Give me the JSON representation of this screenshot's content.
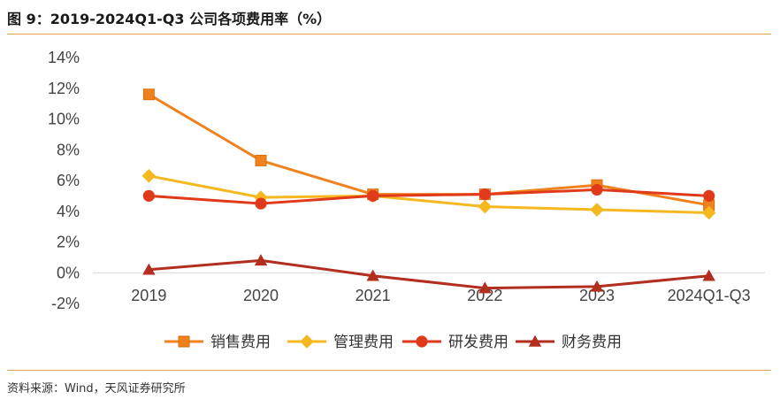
{
  "header": {
    "title": "图 9：2019-2024Q1-Q3 公司各项费用率（%）"
  },
  "footer": {
    "source": "资料来源：Wind，天风证券研究所"
  },
  "chart_data": {
    "type": "line",
    "title": "图 9：2019-2024Q1-Q3 公司各项费用率（%）",
    "categories": [
      "2019",
      "2020",
      "2021",
      "2022",
      "2023",
      "2024Q1-Q3"
    ],
    "ylim": [
      -2,
      14
    ],
    "yticks": [
      -2,
      0,
      2,
      4,
      6,
      8,
      10,
      12,
      14
    ],
    "ytick_labels": [
      "-2%",
      "0%",
      "2%",
      "4%",
      "6%",
      "8%",
      "10%",
      "12%",
      "14%"
    ],
    "grid": false,
    "legend_position": "bottom",
    "series": [
      {
        "name": "销售费用",
        "marker": "square",
        "color": "#f0821e",
        "values": [
          11.6,
          7.3,
          5.1,
          5.1,
          5.7,
          4.4
        ]
      },
      {
        "name": "管理费用",
        "marker": "diamond",
        "color": "#f5b820",
        "values": [
          6.3,
          4.9,
          5.0,
          4.3,
          4.1,
          3.9
        ]
      },
      {
        "name": "研发费用",
        "marker": "circle",
        "color": "#e03a1a",
        "values": [
          5.0,
          4.5,
          5.0,
          5.1,
          5.4,
          5.0
        ]
      },
      {
        "name": "财务费用",
        "marker": "triangle",
        "color": "#b22e1f",
        "values": [
          0.2,
          0.8,
          -0.2,
          -1.0,
          -0.9,
          -0.2
        ]
      }
    ]
  }
}
